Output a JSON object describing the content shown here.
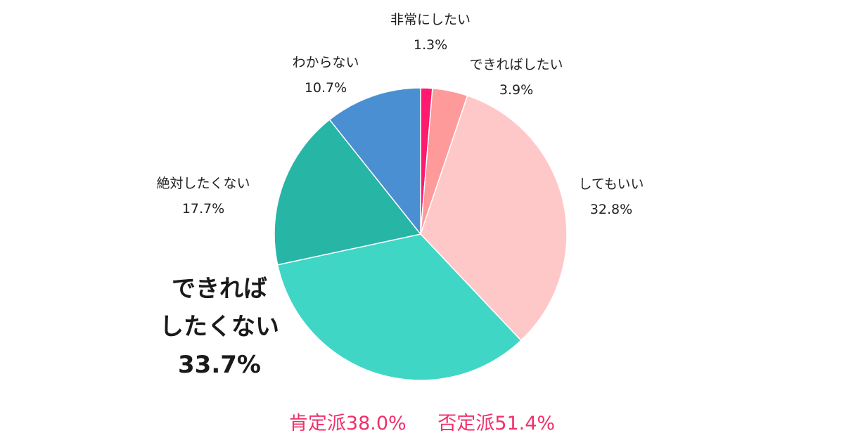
{
  "chart_data": {
    "type": "pie",
    "slices": [
      {
        "label": "非常にしたい",
        "value": 1.3,
        "value_label": "1.3%",
        "color": "#ff1a6e"
      },
      {
        "label": "できればしたい",
        "value": 3.9,
        "value_label": "3.9%",
        "color": "#ff9a9a"
      },
      {
        "label": "してもいい",
        "value": 32.8,
        "value_label": "32.8%",
        "color": "#ffc8c8"
      },
      {
        "label": "できれば\nしたくない",
        "label_lines": [
          "できれば",
          "したくない"
        ],
        "value": 33.7,
        "value_label": "33.7%",
        "color": "#3fd6c6",
        "emphasis": true
      },
      {
        "label": "絶対したくない",
        "value": 17.7,
        "value_label": "17.7%",
        "color": "#27b5a6"
      },
      {
        "label": "わからない",
        "value": 10.7,
        "value_label": "10.7%",
        "color": "#4a8fd1"
      }
    ],
    "start": "12 o'clock",
    "direction": "clockwise"
  },
  "summary": {
    "positive": "肯定派38.0%",
    "negative": "否定派51.4%",
    "color": "#f0306a"
  }
}
